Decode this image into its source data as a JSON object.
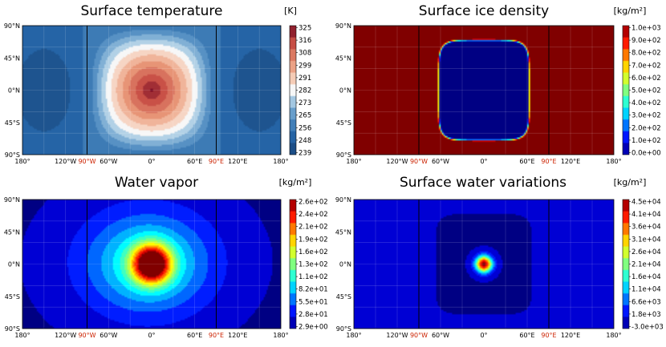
{
  "chart_data": [
    {
      "type": "heatmap",
      "title": "Surface temperature",
      "unit": "[K]",
      "colormap": "RdBu_r",
      "field": "temperature",
      "colorbar_ticks": [
        "325",
        "316",
        "308",
        "299",
        "291",
        "282",
        "273",
        "265",
        "256",
        "248",
        "239"
      ],
      "x_ticks": [
        "180°",
        "120°W",
        "90°W",
        "60°W",
        "0°",
        "60°E",
        "90°E",
        "120°E",
        "180°"
      ],
      "y_ticks": [
        "90°N",
        "45°N",
        "0°N",
        "45°S",
        "90°S"
      ],
      "x_range": [
        -180,
        180
      ],
      "y_range": [
        -90,
        90
      ],
      "value_range": [
        239,
        325
      ],
      "substellar_longitude": 0,
      "terminator_longitudes": [
        -90,
        90
      ]
    },
    {
      "type": "heatmap",
      "title": "Surface ice density",
      "unit": "[kg/m²]",
      "colormap": "jet",
      "field": "ice",
      "colorbar_ticks": [
        "1.0e+03",
        "9.0e+02",
        "8.0e+02",
        "7.0e+02",
        "6.0e+02",
        "5.0e+02",
        "4.0e+02",
        "3.0e+02",
        "2.0e+02",
        "1.0e+02",
        "0.0e+00"
      ],
      "x_ticks": [
        "180°",
        "120°W",
        "90°W",
        "60°W",
        "0°",
        "60°E",
        "90°E",
        "120°E",
        "180°"
      ],
      "y_ticks": [
        "90°N",
        "45°N",
        "0°N",
        "45°S",
        "90°S"
      ],
      "x_range": [
        -180,
        180
      ],
      "y_range": [
        -90,
        90
      ],
      "value_range": [
        0,
        1000
      ]
    },
    {
      "type": "heatmap",
      "title": "Water vapor",
      "unit": "[kg/m²]",
      "colormap": "jet",
      "field": "vapor",
      "colorbar_ticks": [
        "2.6e+02",
        "2.4e+02",
        "2.1e+02",
        "1.9e+02",
        "1.6e+02",
        "1.3e+02",
        "1.1e+02",
        "8.2e+01",
        "5.5e+01",
        "2.8e+01",
        "2.9e+00"
      ],
      "x_ticks": [
        "180°",
        "120°W",
        "90°W",
        "60°W",
        "0°",
        "60°E",
        "90°E",
        "120°E",
        "180°"
      ],
      "y_ticks": [
        "90°N",
        "45°N",
        "0°N",
        "45°S",
        "90°S"
      ],
      "x_range": [
        -180,
        180
      ],
      "y_range": [
        -90,
        90
      ],
      "value_range": [
        2.9,
        260
      ]
    },
    {
      "type": "heatmap",
      "title": "Surface water variations",
      "unit": "[kg/m²]",
      "colormap": "jet",
      "field": "water",
      "colorbar_ticks": [
        "4.5e+04",
        "4.1e+04",
        "3.6e+04",
        "3.1e+04",
        "2.6e+04",
        "2.1e+04",
        "1.6e+04",
        "1.1e+04",
        "6.6e+03",
        "1.8e+03",
        "-3.0e+03"
      ],
      "x_ticks": [
        "180°",
        "120°W",
        "90°W",
        "60°W",
        "0°",
        "60°E",
        "90°E",
        "120°E",
        "180°"
      ],
      "y_ticks": [
        "90°N",
        "45°N",
        "0°N",
        "45°S",
        "90°S"
      ],
      "x_range": [
        -180,
        180
      ],
      "y_range": [
        -90,
        90
      ],
      "value_range": [
        -3000,
        45000
      ]
    }
  ]
}
